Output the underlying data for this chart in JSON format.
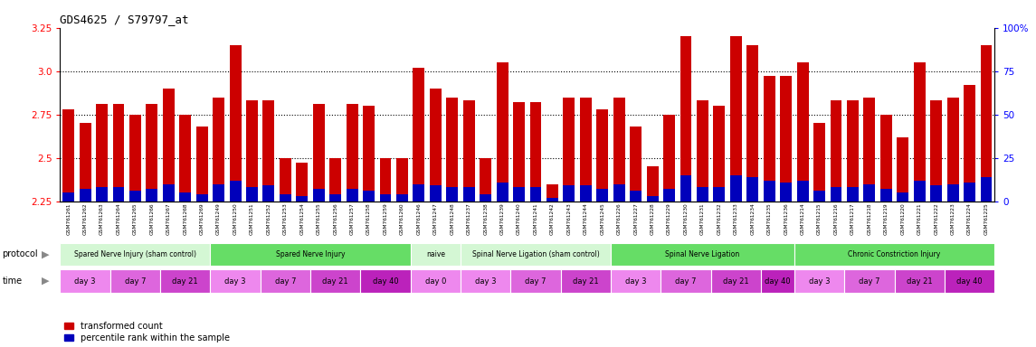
{
  "title": "GDS4625 / S79797_at",
  "samples": [
    "GSM761261",
    "GSM761262",
    "GSM761263",
    "GSM761264",
    "GSM761265",
    "GSM761266",
    "GSM761267",
    "GSM761268",
    "GSM761269",
    "GSM761249",
    "GSM761250",
    "GSM761251",
    "GSM761252",
    "GSM761253",
    "GSM761254",
    "GSM761255",
    "GSM761256",
    "GSM761257",
    "GSM761258",
    "GSM761259",
    "GSM761260",
    "GSM761246",
    "GSM761247",
    "GSM761248",
    "GSM761237",
    "GSM761238",
    "GSM761239",
    "GSM761240",
    "GSM761241",
    "GSM761242",
    "GSM761243",
    "GSM761244",
    "GSM761245",
    "GSM761226",
    "GSM761227",
    "GSM761228",
    "GSM761229",
    "GSM761230",
    "GSM761231",
    "GSM761232",
    "GSM761233",
    "GSM761234",
    "GSM761235",
    "GSM761236",
    "GSM761214",
    "GSM761215",
    "GSM761216",
    "GSM761217",
    "GSM761218",
    "GSM761219",
    "GSM761220",
    "GSM761221",
    "GSM761222",
    "GSM761223",
    "GSM761224",
    "GSM761225"
  ],
  "red_values": [
    2.78,
    2.7,
    2.81,
    2.81,
    2.75,
    2.81,
    2.9,
    2.75,
    2.68,
    2.85,
    3.15,
    2.83,
    2.83,
    2.5,
    2.47,
    2.81,
    2.5,
    2.81,
    2.8,
    2.5,
    2.5,
    3.02,
    2.9,
    2.85,
    2.83,
    2.5,
    3.05,
    2.82,
    2.82,
    2.35,
    2.85,
    2.85,
    2.78,
    2.85,
    2.68,
    2.45,
    2.75,
    3.2,
    2.83,
    2.8,
    3.2,
    3.15,
    2.97,
    2.97,
    3.05,
    2.7,
    2.83,
    2.83,
    2.85,
    2.75,
    2.62,
    3.05,
    2.83,
    2.85,
    2.92,
    3.15
  ],
  "blue_pct_values": [
    5,
    7,
    8,
    8,
    6,
    7,
    10,
    5,
    4,
    10,
    12,
    8,
    9,
    4,
    3,
    7,
    4,
    7,
    6,
    4,
    4,
    10,
    9,
    8,
    8,
    4,
    11,
    8,
    8,
    2,
    9,
    9,
    7,
    10,
    6,
    3,
    7,
    15,
    8,
    8,
    15,
    14,
    12,
    11,
    12,
    6,
    8,
    8,
    10,
    7,
    5,
    12,
    9,
    10,
    11,
    14
  ],
  "ylim_left": [
    2.25,
    3.25
  ],
  "ylim_right": [
    0,
    100
  ],
  "yticks_left": [
    2.25,
    2.5,
    2.75,
    3.0,
    3.25
  ],
  "yticks_right": [
    0,
    25,
    50,
    75,
    100
  ],
  "bar_color_red": "#cc0000",
  "bar_color_blue": "#0000bb",
  "bg_color": "#ffffff",
  "protocol_groups": [
    {
      "label": "Spared Nerve Injury (sham control)",
      "start": 0,
      "end": 9,
      "color": "#d4f7d4"
    },
    {
      "label": "Spared Nerve Injury",
      "start": 9,
      "end": 21,
      "color": "#66dd66"
    },
    {
      "label": "naive",
      "start": 21,
      "end": 24,
      "color": "#d4f7d4"
    },
    {
      "label": "Spinal Nerve Ligation (sham control)",
      "start": 24,
      "end": 33,
      "color": "#d4f7d4"
    },
    {
      "label": "Spinal Nerve Ligation",
      "start": 33,
      "end": 44,
      "color": "#66dd66"
    },
    {
      "label": "Chronic Constriction Injury",
      "start": 44,
      "end": 56,
      "color": "#66dd66"
    }
  ],
  "time_groups": [
    {
      "label": "day 3",
      "start": 0,
      "end": 3,
      "color": "#ee88ee"
    },
    {
      "label": "day 7",
      "start": 3,
      "end": 6,
      "color": "#dd66dd"
    },
    {
      "label": "day 21",
      "start": 6,
      "end": 9,
      "color": "#cc44cc"
    },
    {
      "label": "day 3",
      "start": 9,
      "end": 12,
      "color": "#ee88ee"
    },
    {
      "label": "day 7",
      "start": 12,
      "end": 15,
      "color": "#dd66dd"
    },
    {
      "label": "day 21",
      "start": 15,
      "end": 18,
      "color": "#cc44cc"
    },
    {
      "label": "day 40",
      "start": 18,
      "end": 21,
      "color": "#bb22bb"
    },
    {
      "label": "day 0",
      "start": 21,
      "end": 24,
      "color": "#ee88ee"
    },
    {
      "label": "day 3",
      "start": 24,
      "end": 27,
      "color": "#ee88ee"
    },
    {
      "label": "day 7",
      "start": 27,
      "end": 30,
      "color": "#dd66dd"
    },
    {
      "label": "day 21",
      "start": 30,
      "end": 33,
      "color": "#cc44cc"
    },
    {
      "label": "day 3",
      "start": 33,
      "end": 36,
      "color": "#ee88ee"
    },
    {
      "label": "day 7",
      "start": 36,
      "end": 39,
      "color": "#dd66dd"
    },
    {
      "label": "day 21",
      "start": 39,
      "end": 42,
      "color": "#cc44cc"
    },
    {
      "label": "day 40",
      "start": 42,
      "end": 44,
      "color": "#bb22bb"
    },
    {
      "label": "day 3",
      "start": 44,
      "end": 47,
      "color": "#ee88ee"
    },
    {
      "label": "day 7",
      "start": 47,
      "end": 50,
      "color": "#dd66dd"
    },
    {
      "label": "day 21",
      "start": 50,
      "end": 53,
      "color": "#cc44cc"
    },
    {
      "label": "day 40",
      "start": 53,
      "end": 56,
      "color": "#bb22bb"
    }
  ],
  "legend_red_label": "transformed count",
  "legend_blue_label": "percentile rank within the sample",
  "grid_lines": [
    2.5,
    2.75,
    3.0
  ],
  "bar_width": 0.7
}
